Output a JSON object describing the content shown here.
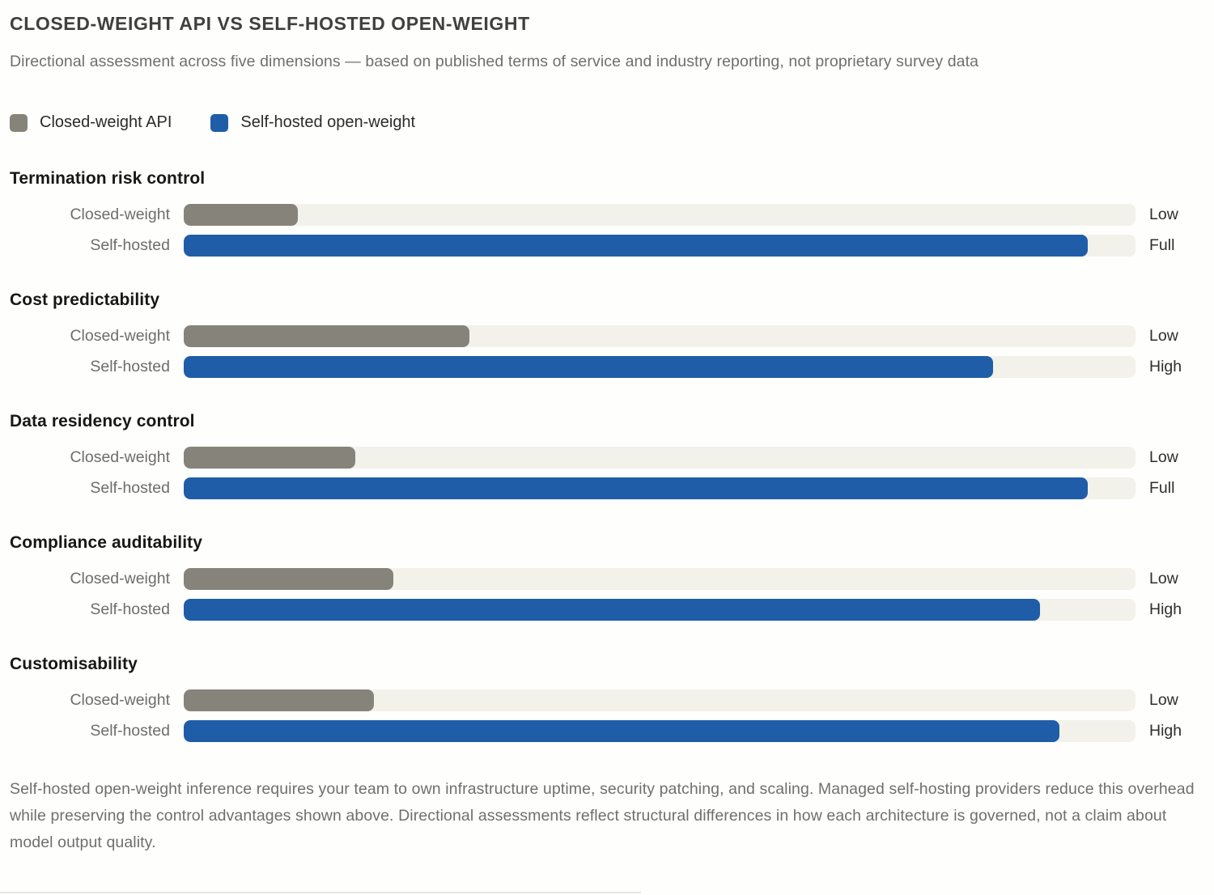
{
  "header": {
    "title": "CLOSED-WEIGHT API VS SELF-HOSTED OPEN-WEIGHT",
    "subtitle": "Directional assessment across five dimensions — based on published terms of service and industry reporting, not proprietary survey data"
  },
  "legend": [
    {
      "label": "Closed-weight API",
      "swatch_color": "#86847a",
      "icon": "square-swatch-icon"
    },
    {
      "label": "Self-hosted open-weight",
      "swatch_color": "#1f5da8",
      "icon": "square-swatch-icon"
    }
  ],
  "chart_data": {
    "type": "bar",
    "orientation": "horizontal",
    "title": "Closed-weight API vs Self-hosted open-weight",
    "xlabel": "",
    "ylabel": "",
    "scale_pct_range": [
      0,
      100
    ],
    "grid": false,
    "legend_position": "top-left",
    "categories": [
      "Termination risk control",
      "Cost predictability",
      "Data residency control",
      "Compliance auditability",
      "Customisability"
    ],
    "series": [
      {
        "name": "Closed-weight API",
        "row_label": "Closed-weight",
        "color": "#86847a",
        "values_pct": [
          12,
          30,
          18,
          22,
          20
        ],
        "ratings": [
          "Low",
          "Low",
          "Low",
          "Low",
          "Low"
        ]
      },
      {
        "name": "Self-hosted open-weight",
        "row_label": "Self-hosted",
        "color": "#1f5da8",
        "values_pct": [
          95,
          85,
          95,
          90,
          92
        ],
        "ratings": [
          "Full",
          "High",
          "Full",
          "High",
          "High"
        ]
      }
    ],
    "groups": [
      {
        "dimension": "Termination risk control",
        "bars": [
          {
            "label": "Closed-weight",
            "value_pct": 12,
            "rating": "Low",
            "color": "#86847a"
          },
          {
            "label": "Self-hosted",
            "value_pct": 95,
            "rating": "Full",
            "color": "#1f5da8"
          }
        ]
      },
      {
        "dimension": "Cost predictability",
        "bars": [
          {
            "label": "Closed-weight",
            "value_pct": 30,
            "rating": "Low",
            "color": "#86847a"
          },
          {
            "label": "Self-hosted",
            "value_pct": 85,
            "rating": "High",
            "color": "#1f5da8"
          }
        ]
      },
      {
        "dimension": "Data residency control",
        "bars": [
          {
            "label": "Closed-weight",
            "value_pct": 18,
            "rating": "Low",
            "color": "#86847a"
          },
          {
            "label": "Self-hosted",
            "value_pct": 95,
            "rating": "Full",
            "color": "#1f5da8"
          }
        ]
      },
      {
        "dimension": "Compliance auditability",
        "bars": [
          {
            "label": "Closed-weight",
            "value_pct": 22,
            "rating": "Low",
            "color": "#86847a"
          },
          {
            "label": "Self-hosted",
            "value_pct": 90,
            "rating": "High",
            "color": "#1f5da8"
          }
        ]
      },
      {
        "dimension": "Customisability",
        "bars": [
          {
            "label": "Closed-weight",
            "value_pct": 20,
            "rating": "Low",
            "color": "#86847a"
          },
          {
            "label": "Self-hosted",
            "value_pct": 92,
            "rating": "High",
            "color": "#1f5da8"
          }
        ]
      }
    ]
  },
  "footnote": "Self-hosted open-weight inference requires your team to own infrastructure uptime, security patching, and scaling. Managed self-hosting providers reduce this overhead while preserving the control advantages shown above. Directional assessments reflect structural differences in how each architecture is governed, not a claim about model output quality.",
  "colors": {
    "page_background": "#fefefc",
    "bar_track": "#f2f1ea",
    "closed_weight_bar": "#86847a",
    "self_hosted_bar": "#1f5da8",
    "title_text": "#40403e",
    "subtitle_text": "#6f6f6c",
    "section_title_text": "#171716",
    "row_label_text": "#6e6d68",
    "rating_text": "#2e2e2c"
  }
}
